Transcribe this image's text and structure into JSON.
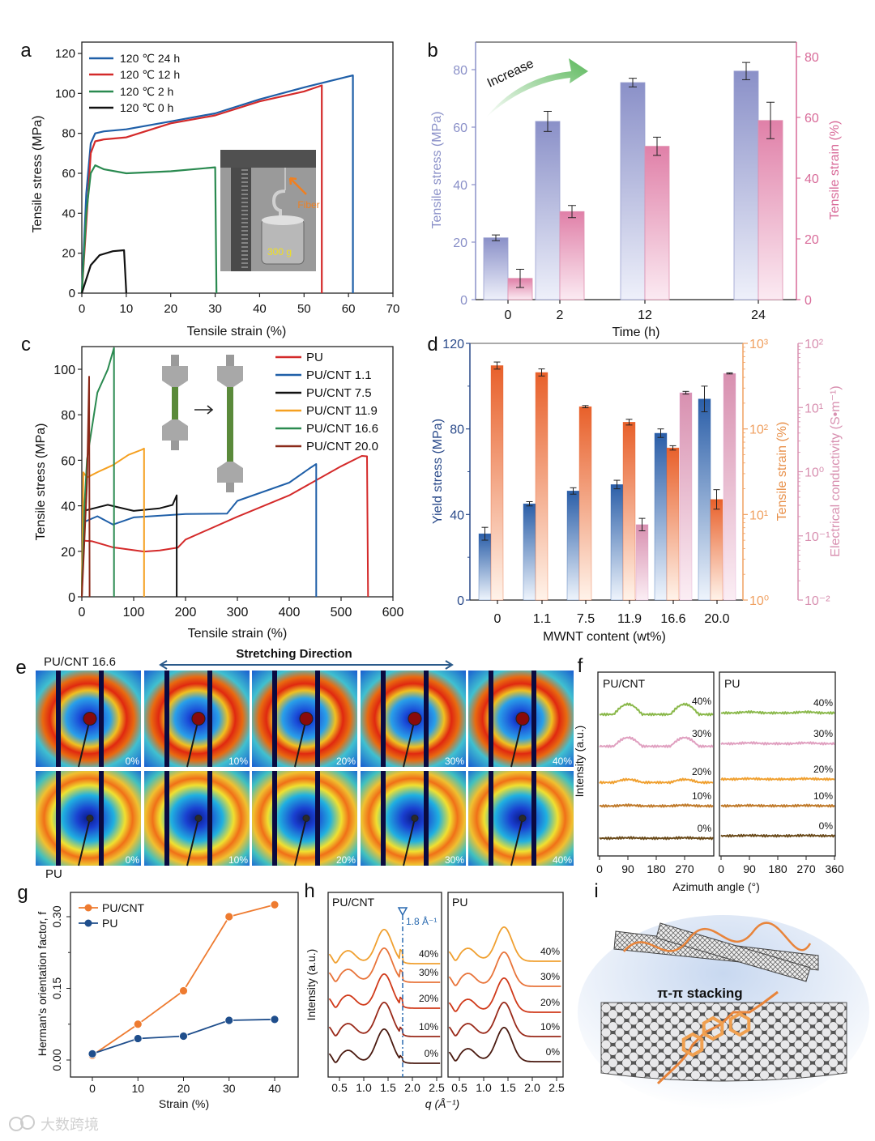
{
  "figure": {
    "panel_labels": [
      "a",
      "b",
      "c",
      "d",
      "e",
      "f",
      "g",
      "h",
      "i"
    ],
    "watermark": "大数跨境"
  },
  "chart_data": [
    {
      "id": "a",
      "type": "line",
      "xlabel": "Tensile strain (%)",
      "ylabel": "Tensile stress (MPa)",
      "xlim": [
        0,
        70
      ],
      "ylim": [
        0,
        120
      ],
      "xticks": [
        "0",
        "10",
        "20",
        "30",
        "40",
        "50",
        "60",
        "70"
      ],
      "yticks": [
        "0",
        "20",
        "40",
        "60",
        "80",
        "100",
        "120"
      ],
      "legend_position": "top-left",
      "series": [
        {
          "name": "120 ℃  24 h",
          "color": "#1f5fa8",
          "points": [
            [
              0,
              0
            ],
            [
              1,
              50
            ],
            [
              2,
              75
            ],
            [
              3,
              80
            ],
            [
              5,
              81
            ],
            [
              10,
              82
            ],
            [
              20,
              86
            ],
            [
              30,
              90
            ],
            [
              40,
              97
            ],
            [
              50,
              103
            ],
            [
              61,
              109
            ],
            [
              61,
              0
            ]
          ]
        },
        {
          "name": "120 ℃  12 h",
          "color": "#d42a2a",
          "points": [
            [
              0,
              0
            ],
            [
              2,
              70
            ],
            [
              3,
              76
            ],
            [
              5,
              77
            ],
            [
              10,
              78
            ],
            [
              20,
              85
            ],
            [
              30,
              89
            ],
            [
              40,
              96
            ],
            [
              50,
              101
            ],
            [
              54,
              104
            ],
            [
              54,
              0
            ]
          ]
        },
        {
          "name": "120 ℃   2 h",
          "color": "#2a8a50",
          "points": [
            [
              0,
              0
            ],
            [
              1,
              40
            ],
            [
              2,
              60
            ],
            [
              3,
              64
            ],
            [
              5,
              62
            ],
            [
              10,
              60
            ],
            [
              20,
              61
            ],
            [
              30,
              63
            ],
            [
              30.3,
              0
            ]
          ]
        },
        {
          "name": "120 ℃   0 h",
          "color": "#111111",
          "points": [
            [
              0,
              0
            ],
            [
              2,
              14
            ],
            [
              4,
              19
            ],
            [
              7,
              21
            ],
            [
              9.5,
              21.5
            ],
            [
              10,
              0
            ]
          ]
        }
      ],
      "inset": {
        "fiber_label": "Fiber",
        "weight_label": "300 g"
      }
    },
    {
      "id": "b",
      "type": "bar",
      "xlabel": "Time (h)",
      "ylabel": "Tensile stress (MPa)",
      "ylabel_right": "Tensile strain (%)",
      "categories": [
        "0",
        "2",
        "12",
        "24"
      ],
      "ylim": [
        0,
        89.5
      ],
      "ylim_right": [
        0,
        84.8
      ],
      "yticks": [
        "0",
        "20",
        "40",
        "60",
        "80"
      ],
      "yticks_right": [
        "0",
        "20",
        "40",
        "60",
        "80"
      ],
      "annotation": "Increase",
      "colors": {
        "stress": "#8a90c8",
        "strain": "#d86a98"
      },
      "series": [
        {
          "name": "Tensile stress",
          "axis": "left",
          "values": [
            21.5,
            62,
            75.5,
            79.5
          ],
          "errors": [
            1,
            3.5,
            1.5,
            3
          ]
        },
        {
          "name": "Tensile strain",
          "axis": "right",
          "values": [
            7,
            29,
            50.5,
            59
          ],
          "errors": [
            3,
            2,
            3,
            6
          ]
        }
      ]
    },
    {
      "id": "c",
      "type": "line",
      "xlabel": "Tensile strain (%)",
      "ylabel": "Tensile stress (MPa)",
      "xlim": [
        0,
        600
      ],
      "ylim": [
        0,
        110
      ],
      "xticks": [
        "0",
        "100",
        "200",
        "300",
        "400",
        "500",
        "600"
      ],
      "yticks": [
        "0",
        "20",
        "40",
        "60",
        "80",
        "100"
      ],
      "legend_position": "top-right",
      "series": [
        {
          "name": "PU",
          "color": "#d42a2a",
          "points": [
            [
              0,
              0
            ],
            [
              2,
              25
            ],
            [
              20,
              24
            ],
            [
              60,
              22
            ],
            [
              120,
              20
            ],
            [
              150,
              20
            ],
            [
              185,
              22
            ],
            [
              200,
              25
            ],
            [
              300,
              35
            ],
            [
              400,
              45
            ],
            [
              500,
              57
            ],
            [
              540,
              62
            ],
            [
              550,
              62
            ],
            [
              552,
              0
            ]
          ]
        },
        {
          "name": "PU/CNT 1.1",
          "color": "#1f5fa8",
          "points": [
            [
              0,
              0
            ],
            [
              2,
              33
            ],
            [
              30,
              35
            ],
            [
              60,
              32
            ],
            [
              100,
              35
            ],
            [
              200,
              36
            ],
            [
              280,
              37
            ],
            [
              300,
              42
            ],
            [
              400,
              50
            ],
            [
              440,
              57
            ],
            [
              452,
              58
            ],
            [
              452,
              0
            ]
          ]
        },
        {
          "name": "PU/CNT 7.5",
          "color": "#111111",
          "points": [
            [
              0,
              0
            ],
            [
              2,
              38
            ],
            [
              50,
              40
            ],
            [
              100,
              38
            ],
            [
              150,
              39
            ],
            [
              175,
              40
            ],
            [
              183,
              45
            ],
            [
              183,
              0
            ]
          ]
        },
        {
          "name": "PU/CNT 11.9",
          "color": "#f5a020",
          "points": [
            [
              0,
              0
            ],
            [
              3,
              55
            ],
            [
              10,
              52
            ],
            [
              30,
              55
            ],
            [
              60,
              58
            ],
            [
              90,
              62
            ],
            [
              115,
              65
            ],
            [
              120,
              65
            ],
            [
              120,
              0
            ]
          ]
        },
        {
          "name": "PU/CNT 16.6",
          "color": "#2a8a50",
          "points": [
            [
              0,
              0
            ],
            [
              5,
              40
            ],
            [
              10,
              60
            ],
            [
              30,
              90
            ],
            [
              50,
              100
            ],
            [
              62,
              109
            ],
            [
              62,
              0
            ]
          ]
        },
        {
          "name": "PU/CNT 20.0",
          "color": "#8b2a1a",
          "points": [
            [
              0,
              0
            ],
            [
              5,
              25
            ],
            [
              10,
              50
            ],
            [
              14,
              97
            ],
            [
              15,
              0
            ]
          ]
        }
      ]
    },
    {
      "id": "d",
      "type": "bar",
      "xlabel": "MWNT content (wt%)",
      "ylabel": "Yield stress (MPa)",
      "ylabel_right": "Tensile strain (%)",
      "ylabel_right2": "Electrical conductivity (S•m⁻¹)",
      "categories": [
        "0",
        "1.1",
        "7.5",
        "11.9",
        "16.6",
        "20.0"
      ],
      "ylim": [
        0,
        120
      ],
      "yticks": [
        "0",
        "40",
        "80",
        "120"
      ],
      "ylim_right": [
        1,
        1000
      ],
      "yticks_right": [
        "10⁰",
        "10¹",
        "10²",
        "10³"
      ],
      "ylim_right2": [
        0.01,
        100
      ],
      "yticks_right2": [
        "10⁻²",
        "10⁻¹",
        "10⁰",
        "10¹",
        "10²"
      ],
      "colors": {
        "yield": "#2a5ea8",
        "strain": "#e8602a",
        "conductivity": "#d890b0"
      },
      "series": [
        {
          "name": "Yield stress",
          "values": [
            31,
            45,
            51,
            54,
            78,
            94
          ],
          "errors": [
            3,
            1,
            1.5,
            2,
            2,
            6
          ]
        },
        {
          "name": "Tensile strain",
          "values": [
            550,
            457,
            182,
            120,
            60,
            15
          ],
          "rel_errors": [
            0.1,
            0.1,
            0.03,
            0.08,
            0.06,
            0.3
          ]
        },
        {
          "name": "Electrical conductivity",
          "values": [
            null,
            null,
            null,
            0.15,
            17,
            34
          ],
          "rel_errors": [
            null,
            null,
            null,
            0.25,
            0.05,
            0.02
          ]
        }
      ]
    },
    {
      "id": "e",
      "type": "heatmap",
      "title": "Stretching Direction",
      "rows": [
        {
          "label": "PU/CNT 16.6",
          "strains": [
            "0%",
            "10%",
            "20%",
            "30%",
            "40%"
          ]
        },
        {
          "label": "PU",
          "strains": [
            "0%",
            "10%",
            "20%",
            "30%",
            "40%"
          ]
        }
      ]
    },
    {
      "id": "f",
      "type": "line",
      "xlabel": "Azimuth angle (°)",
      "ylabel": "Intensity (a.u.)",
      "xlim": [
        0,
        360
      ],
      "xticks_left": [
        "0",
        "90",
        "180",
        "270"
      ],
      "xticks_right": [
        "0",
        "90",
        "180",
        "270",
        "360"
      ],
      "panels": [
        {
          "title": "PU/CNT",
          "strains": [
            "40%",
            "30%",
            "20%",
            "10%",
            "0%"
          ],
          "orientation_amplitude": [
            1.0,
            0.85,
            0.3,
            0.08,
            0.05
          ]
        },
        {
          "title": "PU",
          "strains": [
            "40%",
            "30%",
            "20%",
            "10%",
            "0%"
          ],
          "orientation_amplitude": [
            0.1,
            0.08,
            0.05,
            0.04,
            0.04
          ]
        }
      ],
      "colors": [
        "#8ab84a",
        "#e0a0c0",
        "#f0a030",
        "#c07a2a",
        "#6a4a1a"
      ]
    },
    {
      "id": "g",
      "type": "line",
      "xlabel": "Strain (%)",
      "ylabel": "Herman's orientation factor, f",
      "xlim": [
        -5,
        45
      ],
      "ylim": [
        -0.025,
        0.34
      ],
      "xticks": [
        "0",
        "10",
        "20",
        "30",
        "40"
      ],
      "yticks": [
        "0.00",
        "0.15",
        "0.30"
      ],
      "legend_position": "top-left",
      "x": [
        0,
        10,
        20,
        30,
        40
      ],
      "series": [
        {
          "name": "PU/CNT",
          "color": "#ee7b30",
          "values": [
            0.01,
            0.075,
            0.145,
            0.3,
            0.325
          ]
        },
        {
          "name": "PU",
          "color": "#1f4e8c",
          "values": [
            0.013,
            0.045,
            0.05,
            0.083,
            0.085
          ]
        }
      ]
    },
    {
      "id": "h",
      "type": "line",
      "xlabel": "q (Å⁻¹)",
      "ylabel": "Intensity (a.u.)",
      "xlim": [
        0.27,
        2.6
      ],
      "xticks": [
        "0.5",
        "1.0",
        "1.5",
        "2.0",
        "2.5"
      ],
      "peak_q": 1.42,
      "marker_q": 1.8,
      "marker_label": "1.8 Å⁻¹",
      "panels": [
        {
          "title": "PU/CNT",
          "strains": [
            "40%",
            "30%",
            "20%",
            "10%",
            "0%"
          ]
        },
        {
          "title": "PU",
          "strains": [
            "40%",
            "30%",
            "20%",
            "10%",
            "0%"
          ]
        }
      ],
      "colors": [
        "#f0a030",
        "#e8743a",
        "#d03a1a",
        "#9a2a1a",
        "#4a1a10"
      ]
    }
  ],
  "illustration_i": {
    "label": "π-π stacking"
  }
}
